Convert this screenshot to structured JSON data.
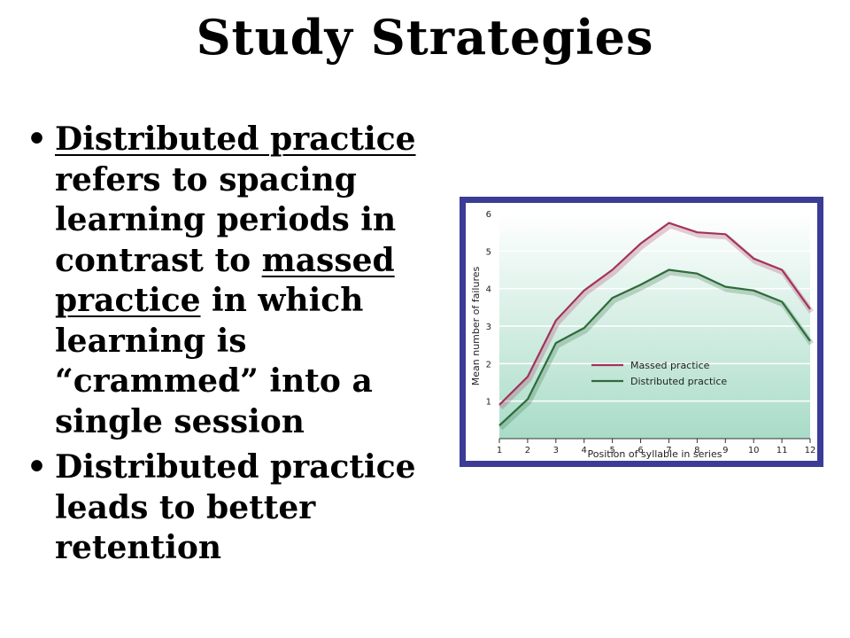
{
  "slide": {
    "title": "Study Strategies",
    "bullet1": {
      "term1": "Distributed practice",
      "text1": " refers to spacing learning periods in contrast to ",
      "term2": "massed practice",
      "text2": " in which learning is “crammed” into a single session"
    },
    "bullet2": "Distributed practice leads to better retention"
  },
  "chart_data": {
    "type": "line",
    "title": "",
    "xlabel": "Position of syllable in series",
    "ylabel": "Mean number of failures",
    "x": [
      1,
      2,
      3,
      4,
      5,
      6,
      7,
      8,
      9,
      10,
      11,
      12
    ],
    "xlim": [
      1,
      12
    ],
    "ylim": [
      0,
      6
    ],
    "yticks": [
      1,
      2,
      3,
      4,
      5,
      6
    ],
    "grid": true,
    "legend": "center-right",
    "series": [
      {
        "name": "Massed practice",
        "color": "#a3325c",
        "values": [
          0.9,
          1.65,
          3.15,
          3.95,
          4.5,
          5.2,
          5.75,
          5.5,
          5.45,
          4.8,
          4.5,
          3.45
        ]
      },
      {
        "name": "Distributed practice",
        "color": "#2f6b3a",
        "values": [
          0.35,
          1.05,
          2.55,
          2.95,
          3.75,
          4.1,
          4.5,
          4.4,
          4.05,
          3.95,
          3.65,
          2.6
        ]
      }
    ],
    "colors": {
      "frame": "#3a3c95",
      "fill_top": "#ffffff",
      "fill_bottom": "#a9dcc8",
      "grid": "#ffffff"
    }
  }
}
